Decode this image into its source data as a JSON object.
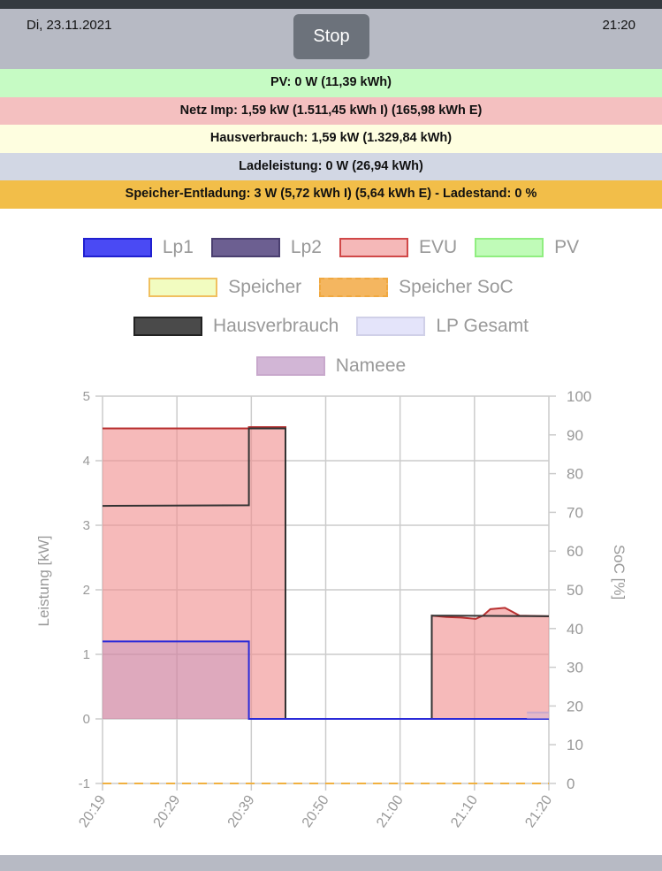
{
  "header": {
    "date": "Di, 23.11.2021",
    "time": "21:20",
    "stop_label": "Stop"
  },
  "status_rows": [
    {
      "text": "PV: 0 W (11,39 kWh)",
      "color": "#c6fbc4"
    },
    {
      "text": "Netz Imp: 1,59 kW (1.511,45 kWh I) (165,98 kWh E)",
      "color": "#f4c0c0"
    },
    {
      "text": "Hausverbrauch: 1,59 kW (1.329,84 kWh)",
      "color": "#fefee0"
    },
    {
      "text": "Ladeleistung: 0 W (26,94 kWh)",
      "color": "#d2d7e4"
    },
    {
      "text": "Speicher-Entladung: 3 W (5,72 kWh I) (5,64 kWh E) - Ladestand: 0 %",
      "color": "#f2be49"
    }
  ],
  "legend": [
    [
      {
        "label": "Lp1",
        "fill": "#4a4af4",
        "border": "#2020d0"
      },
      {
        "label": "Lp2",
        "fill": "#6c5f91",
        "border": "#4a3f70"
      },
      {
        "label": "EVU",
        "fill": "#f5b8b8",
        "border": "#d04848"
      },
      {
        "label": "PV",
        "fill": "#c0fbb8",
        "border": "#90ee80"
      }
    ],
    [
      {
        "label": "Speicher",
        "fill": "#f2fcc0",
        "border": "#f0c060"
      },
      {
        "label": "Speicher SoC",
        "fill": "#f4b660",
        "border": "#f0a840",
        "dashed": true
      }
    ],
    [
      {
        "label": "Hausverbrauch",
        "fill": "#4a4a4a",
        "border": "#222222"
      },
      {
        "label": "LP Gesamt",
        "fill": "#e4e4fa",
        "border": "#d0d0e8"
      }
    ],
    [
      {
        "label": "Nameee",
        "fill": "#d2b6d6",
        "border": "#c8a8cc"
      }
    ]
  ],
  "chart_data": {
    "type": "area",
    "ylabel": "Leistung [kW]",
    "y2label": "SoC [%]",
    "ylim": [
      -1,
      5
    ],
    "y2lim": [
      0,
      100
    ],
    "yticks": [
      "-1",
      "0",
      "1",
      "2",
      "3",
      "4",
      "5"
    ],
    "y2ticks": [
      "0",
      "10",
      "20",
      "30",
      "40",
      "50",
      "60",
      "70",
      "80",
      "90",
      "100"
    ],
    "xticks": [
      "20:19",
      "20:29",
      "20:39",
      "20:50",
      "21:00",
      "21:10",
      "21:20"
    ],
    "xlim": [
      "20:19",
      "21:20"
    ],
    "grid": true,
    "series": [
      {
        "name": "EVU",
        "color": "#b83030",
        "fill": "rgba(240,140,140,0.6)",
        "points": [
          [
            "20:19",
            4.5
          ],
          [
            "20:39",
            4.5
          ],
          [
            "20:39",
            4.52
          ],
          [
            "20:44",
            4.52
          ],
          [
            "20:44",
            0
          ],
          [
            "21:04",
            0
          ],
          [
            "21:04",
            1.6
          ],
          [
            "21:06",
            1.58
          ],
          [
            "21:08",
            1.57
          ],
          [
            "21:10",
            1.55
          ],
          [
            "21:11",
            1.6
          ],
          [
            "21:12",
            1.7
          ],
          [
            "21:14",
            1.72
          ],
          [
            "21:15",
            1.66
          ],
          [
            "21:16",
            1.6
          ],
          [
            "21:20",
            1.59
          ]
        ]
      },
      {
        "name": "Hausverbrauch",
        "color": "#333333",
        "fill": "none",
        "points": [
          [
            "20:19",
            3.3
          ],
          [
            "20:39",
            3.31
          ],
          [
            "20:39",
            4.5
          ],
          [
            "20:44",
            4.5
          ],
          [
            "20:44",
            0
          ],
          [
            "21:04",
            0
          ],
          [
            "21:04",
            1.6
          ],
          [
            "21:20",
            1.59
          ]
        ]
      },
      {
        "name": "Lp1",
        "color": "#2a2ad8",
        "fill": "rgba(150,120,200,0.25)",
        "points": [
          [
            "20:19",
            1.2
          ],
          [
            "20:39",
            1.2
          ],
          [
            "20:39",
            0
          ],
          [
            "21:20",
            0
          ]
        ]
      },
      {
        "name": "Nameee",
        "color": "#c8a8cc",
        "fill": "rgba(210,182,214,0.5)",
        "points": [
          [
            "21:17",
            0.1
          ],
          [
            "21:20",
            0.1
          ]
        ]
      },
      {
        "name": "Speicher SoC",
        "axis": "right",
        "color": "#f0b040",
        "dashed": true,
        "fill": "none",
        "points": [
          [
            "20:19",
            0
          ],
          [
            "21:20",
            0
          ]
        ]
      }
    ]
  }
}
